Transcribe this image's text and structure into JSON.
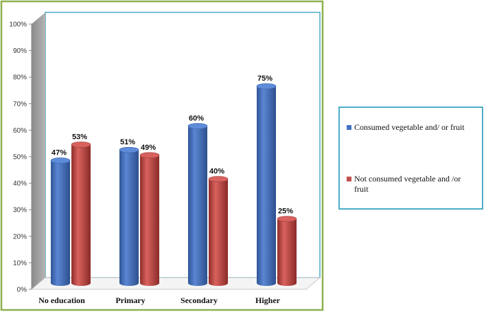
{
  "chart_data": {
    "type": "bar",
    "categories": [
      "No education",
      "Primary",
      "Secondary",
      "Higher"
    ],
    "series": [
      {
        "name": "Consumed vegetable and/ or fruit",
        "values": [
          47,
          51,
          60,
          75
        ],
        "color": "#4472C4"
      },
      {
        "name": "Not consumed  vegetable and /or fruit",
        "values": [
          53,
          49,
          40,
          25
        ],
        "color": "#C0504D"
      }
    ],
    "value_labels": [
      [
        "47%",
        "51%",
        "60%",
        "75%"
      ],
      [
        "53%",
        "49%",
        "40%",
        "25%"
      ]
    ],
    "y_ticks": [
      "0%",
      "10%",
      "20%",
      "30%",
      "40%",
      "50%",
      "60%",
      "70%",
      "80%",
      "90%",
      "100%"
    ],
    "ylim": [
      0,
      100
    ],
    "grid": false,
    "legend_position": "right",
    "style": {
      "frame_color": "#8DB04E",
      "plot_border_color": "#4BACC6",
      "wall_color": "#9A9A9A"
    }
  }
}
